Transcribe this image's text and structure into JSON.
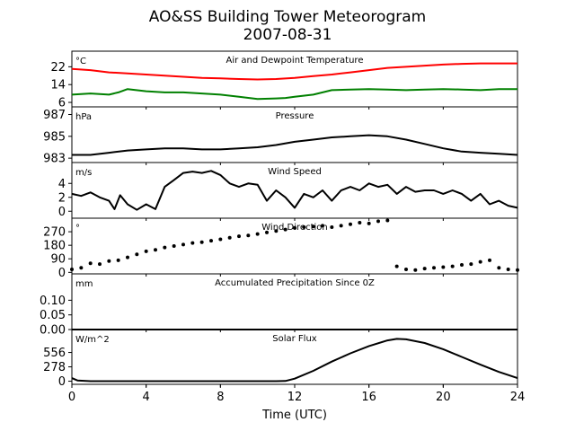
{
  "title_line1": "AO&SS Building Tower Meteorogram",
  "title_line2": "2007-08-31",
  "xlabel": "Time (UTC)",
  "x_ticks": [
    "0",
    "4",
    "8",
    "12",
    "16",
    "20",
    "24"
  ],
  "chart_data": [
    {
      "type": "line",
      "title": "Air and Dewpoint Temperature",
      "unit_label": "°C",
      "xlim": [
        0,
        24
      ],
      "ylim": [
        4,
        29
      ],
      "y_ticks": [
        6,
        14,
        22
      ],
      "series": [
        {
          "name": "Air Temperature",
          "color": "#ff0000",
          "x": [
            0,
            1,
            2,
            3,
            4,
            5,
            6,
            7,
            8,
            9,
            10,
            11,
            12,
            13,
            14,
            15,
            16,
            17,
            18,
            19,
            20,
            21,
            22,
            23,
            24
          ],
          "y": [
            21,
            20.5,
            19.5,
            19,
            18.5,
            18,
            17.5,
            17,
            16.8,
            16.5,
            16.3,
            16.5,
            17,
            17.8,
            18.5,
            19.5,
            20.5,
            21.5,
            22,
            22.5,
            23,
            23.3,
            23.5,
            23.5,
            23.5
          ]
        },
        {
          "name": "Dewpoint Temperature",
          "color": "#008000",
          "x": [
            0,
            1,
            2,
            2.5,
            3,
            4,
            5,
            6,
            7,
            8,
            9,
            10,
            11,
            11.5,
            12,
            13,
            14,
            15,
            16,
            17,
            18,
            19,
            20,
            21,
            22,
            23,
            24
          ],
          "y": [
            9.5,
            10,
            9.5,
            10.5,
            12,
            11,
            10.5,
            10.5,
            10,
            9.5,
            8.5,
            7.5,
            7.8,
            8,
            8.5,
            9.5,
            11.5,
            11.8,
            12,
            11.8,
            11.5,
            11.8,
            12,
            11.8,
            11.5,
            12,
            12
          ]
        }
      ]
    },
    {
      "type": "line",
      "title": "Pressure",
      "unit_label": "hPa",
      "xlim": [
        0,
        24
      ],
      "ylim": [
        982.6,
        987.7
      ],
      "y_ticks": [
        983,
        985,
        987
      ],
      "series": [
        {
          "name": "Pressure",
          "color": "#000000",
          "x": [
            0,
            1,
            2,
            3,
            4,
            5,
            6,
            7,
            8,
            9,
            10,
            11,
            12,
            13,
            14,
            15,
            16,
            17,
            18,
            19,
            20,
            21,
            22,
            23,
            24
          ],
          "y": [
            983.3,
            983.3,
            983.5,
            983.7,
            983.8,
            983.9,
            983.9,
            983.8,
            983.8,
            983.9,
            984.0,
            984.2,
            984.5,
            984.7,
            984.9,
            985.0,
            985.1,
            985.0,
            984.7,
            984.3,
            983.9,
            983.6,
            983.5,
            983.4,
            983.3
          ]
        }
      ]
    },
    {
      "type": "line",
      "title": "Wind Speed",
      "unit_label": "m/s",
      "xlim": [
        0,
        24
      ],
      "ylim": [
        -1,
        7
      ],
      "y_ticks": [
        0,
        2,
        4
      ],
      "series": [
        {
          "name": "Wind Speed",
          "color": "#000000",
          "x": [
            0,
            0.5,
            1,
            1.5,
            2,
            2.3,
            2.6,
            3,
            3.5,
            4,
            4.5,
            5,
            5.5,
            6,
            6.5,
            7,
            7.5,
            8,
            8.5,
            9,
            9.5,
            10,
            10.5,
            11,
            11.5,
            12,
            12.5,
            13,
            13.5,
            14,
            14.5,
            15,
            15.5,
            16,
            16.5,
            17,
            17.5,
            18,
            18.5,
            19,
            19.5,
            20,
            20.5,
            21,
            21.5,
            22,
            22.5,
            23,
            23.5,
            24
          ],
          "y": [
            2.5,
            2.2,
            2.7,
            2.0,
            1.5,
            0.3,
            2.3,
            1.0,
            0.2,
            1.0,
            0.3,
            3.5,
            4.5,
            5.5,
            5.7,
            5.5,
            5.8,
            5.2,
            4.0,
            3.5,
            4.0,
            3.8,
            1.5,
            3.0,
            2.0,
            0.5,
            2.5,
            2.0,
            3.0,
            1.5,
            3.0,
            3.5,
            3.0,
            4.0,
            3.5,
            3.8,
            2.5,
            3.5,
            2.8,
            3.0,
            3.0,
            2.5,
            3.0,
            2.5,
            1.5,
            2.5,
            1.0,
            1.5,
            0.8,
            0.5
          ]
        }
      ]
    },
    {
      "type": "scatter",
      "title": "Wind Direction",
      "unit_label": "°",
      "xlim": [
        0,
        24
      ],
      "ylim": [
        -10,
        360
      ],
      "y_ticks": [
        0,
        90,
        180,
        270
      ],
      "series": [
        {
          "name": "Wind Direction",
          "color": "#000000",
          "x": [
            0,
            0.5,
            1,
            1.5,
            2,
            2.5,
            3,
            3.5,
            4,
            4.5,
            5,
            5.5,
            6,
            6.5,
            7,
            7.5,
            8,
            8.5,
            9,
            9.5,
            10,
            10.5,
            11,
            11.5,
            12,
            12.5,
            13,
            13.5,
            14,
            14.5,
            15,
            15.5,
            16,
            16.5,
            17,
            17.5,
            18,
            18.5,
            19,
            19.5,
            20,
            20.5,
            21,
            21.5,
            22,
            22.5,
            23,
            23.5,
            24
          ],
          "y": [
            20,
            30,
            60,
            55,
            75,
            80,
            100,
            120,
            140,
            150,
            165,
            175,
            185,
            195,
            200,
            210,
            220,
            230,
            240,
            245,
            255,
            265,
            275,
            285,
            295,
            300,
            305,
            310,
            300,
            310,
            320,
            330,
            325,
            340,
            345,
            40,
            20,
            15,
            25,
            30,
            35,
            40,
            50,
            55,
            70,
            80,
            30,
            20,
            15
          ]
        }
      ]
    },
    {
      "type": "line",
      "title": "Accumulated Precipitation Since 0Z",
      "unit_label": "mm",
      "xlim": [
        0,
        24
      ],
      "ylim": [
        0,
        0.19
      ],
      "y_ticks": [
        "0.00",
        "0.05",
        "0.10"
      ],
      "series": [
        {
          "name": "Precipitation",
          "color": "#000000",
          "x": [
            0,
            24
          ],
          "y": [
            0,
            0
          ]
        }
      ]
    },
    {
      "type": "line",
      "title": "Solar Flux",
      "unit_label": "W/m^2",
      "xlim": [
        0,
        24
      ],
      "ylim": [
        -60,
        1000
      ],
      "y_ticks": [
        0,
        278,
        556
      ],
      "series": [
        {
          "name": "Solar Flux",
          "color": "#000000",
          "x": [
            0,
            0.3,
            1,
            2,
            4,
            6,
            8,
            10,
            11,
            11.5,
            12,
            13,
            14,
            15,
            16,
            17,
            17.5,
            18,
            19,
            20,
            21,
            22,
            23,
            24
          ],
          "y": [
            60,
            15,
            0,
            0,
            0,
            0,
            0,
            0,
            0,
            5,
            50,
            200,
            380,
            540,
            680,
            790,
            820,
            810,
            740,
            620,
            470,
            320,
            180,
            60
          ]
        }
      ]
    }
  ]
}
